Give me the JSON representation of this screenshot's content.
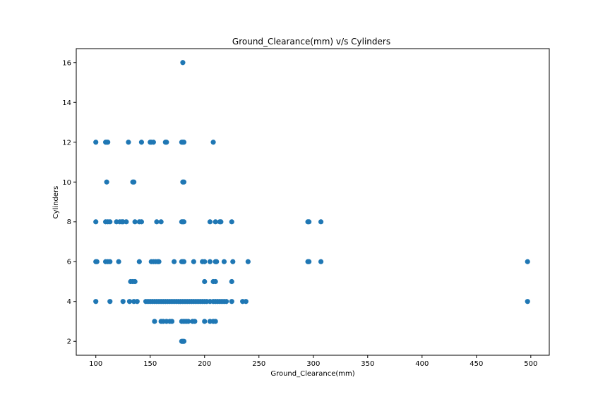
{
  "chart_data": {
    "type": "scatter",
    "title": "Ground_Clearance(mm) v/s Cylinders",
    "xlabel": "Ground_Clearance(mm)",
    "ylabel": "Cylinders",
    "xlim": [
      82,
      517
    ],
    "ylim": [
      1.3,
      16.7
    ],
    "xticks": [
      100,
      150,
      200,
      250,
      300,
      350,
      400,
      450,
      500
    ],
    "yticks": [
      2,
      4,
      6,
      8,
      10,
      12,
      14,
      16
    ],
    "grid": false,
    "marker_color": "#1f77b4",
    "points": [
      [
        180,
        16
      ],
      [
        100,
        12
      ],
      [
        109,
        12
      ],
      [
        110,
        12
      ],
      [
        111,
        12
      ],
      [
        130,
        12
      ],
      [
        142,
        12
      ],
      [
        150,
        12
      ],
      [
        151,
        12
      ],
      [
        153,
        12
      ],
      [
        164,
        12
      ],
      [
        165,
        12
      ],
      [
        179,
        12
      ],
      [
        180,
        12
      ],
      [
        181,
        12
      ],
      [
        208,
        12
      ],
      [
        110,
        10
      ],
      [
        134,
        10
      ],
      [
        135,
        10
      ],
      [
        180,
        10
      ],
      [
        181,
        10
      ],
      [
        100,
        8
      ],
      [
        109,
        8
      ],
      [
        111,
        8
      ],
      [
        113,
        8
      ],
      [
        119,
        8
      ],
      [
        122,
        8
      ],
      [
        124,
        8
      ],
      [
        125,
        8
      ],
      [
        128,
        8
      ],
      [
        136,
        8
      ],
      [
        140,
        8
      ],
      [
        142,
        8
      ],
      [
        156,
        8
      ],
      [
        160,
        8
      ],
      [
        179,
        8
      ],
      [
        180,
        8
      ],
      [
        181,
        8
      ],
      [
        205,
        8
      ],
      [
        210,
        8
      ],
      [
        214,
        8
      ],
      [
        215,
        8
      ],
      [
        225,
        8
      ],
      [
        295,
        8
      ],
      [
        296,
        8
      ],
      [
        307,
        8
      ],
      [
        100,
        6
      ],
      [
        101,
        6
      ],
      [
        109,
        6
      ],
      [
        111,
        6
      ],
      [
        113,
        6
      ],
      [
        121,
        6
      ],
      [
        140,
        6
      ],
      [
        151,
        6
      ],
      [
        153,
        6
      ],
      [
        155,
        6
      ],
      [
        157,
        6
      ],
      [
        158,
        6
      ],
      [
        172,
        6
      ],
      [
        179,
        6
      ],
      [
        180,
        6
      ],
      [
        181,
        6
      ],
      [
        190,
        6
      ],
      [
        198,
        6
      ],
      [
        200,
        6
      ],
      [
        205,
        6
      ],
      [
        210,
        6
      ],
      [
        211,
        6
      ],
      [
        218,
        6
      ],
      [
        226,
        6
      ],
      [
        240,
        6
      ],
      [
        295,
        6
      ],
      [
        296,
        6
      ],
      [
        307,
        6
      ],
      [
        497,
        6
      ],
      [
        132,
        5
      ],
      [
        134,
        5
      ],
      [
        136,
        5
      ],
      [
        200,
        5
      ],
      [
        208,
        5
      ],
      [
        210,
        5
      ],
      [
        225,
        5
      ],
      [
        100,
        4
      ],
      [
        113,
        4
      ],
      [
        125,
        4
      ],
      [
        131,
        4
      ],
      [
        135,
        4
      ],
      [
        138,
        4
      ],
      [
        146,
        4
      ],
      [
        148,
        4
      ],
      [
        150,
        4
      ],
      [
        152,
        4
      ],
      [
        154,
        4
      ],
      [
        156,
        4
      ],
      [
        158,
        4
      ],
      [
        160,
        4
      ],
      [
        162,
        4
      ],
      [
        164,
        4
      ],
      [
        166,
        4
      ],
      [
        168,
        4
      ],
      [
        170,
        4
      ],
      [
        172,
        4
      ],
      [
        174,
        4
      ],
      [
        176,
        4
      ],
      [
        178,
        4
      ],
      [
        180,
        4
      ],
      [
        182,
        4
      ],
      [
        184,
        4
      ],
      [
        186,
        4
      ],
      [
        188,
        4
      ],
      [
        190,
        4
      ],
      [
        192,
        4
      ],
      [
        194,
        4
      ],
      [
        196,
        4
      ],
      [
        198,
        4
      ],
      [
        200,
        4
      ],
      [
        202,
        4
      ],
      [
        205,
        4
      ],
      [
        208,
        4
      ],
      [
        210,
        4
      ],
      [
        212,
        4
      ],
      [
        214,
        4
      ],
      [
        216,
        4
      ],
      [
        218,
        4
      ],
      [
        220,
        4
      ],
      [
        225,
        4
      ],
      [
        235,
        4
      ],
      [
        238,
        4
      ],
      [
        497,
        4
      ],
      [
        154,
        3
      ],
      [
        160,
        3
      ],
      [
        162,
        3
      ],
      [
        165,
        3
      ],
      [
        168,
        3
      ],
      [
        170,
        3
      ],
      [
        179,
        3
      ],
      [
        181,
        3
      ],
      [
        183,
        3
      ],
      [
        185,
        3
      ],
      [
        189,
        3
      ],
      [
        191,
        3
      ],
      [
        200,
        3
      ],
      [
        205,
        3
      ],
      [
        208,
        3
      ],
      [
        210,
        3
      ],
      [
        179,
        2
      ],
      [
        180,
        2
      ],
      [
        181,
        2
      ]
    ]
  }
}
